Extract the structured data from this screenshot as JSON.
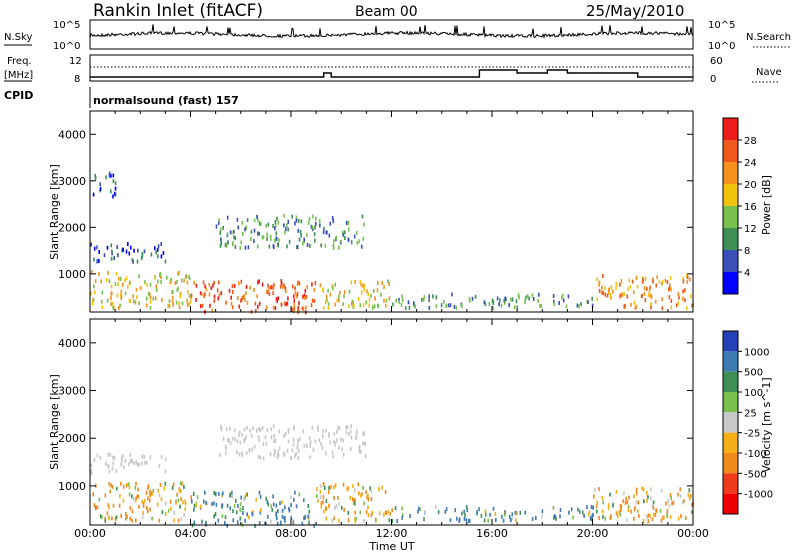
{
  "header": {
    "station": "Rankin Inlet (fitACF)",
    "beam": "Beam 00",
    "date": "25/May/2010"
  },
  "top_panel": {
    "left_label": "N.Sky",
    "left_ticks": [
      "10^5",
      "10^0"
    ],
    "right_label": "N.Search",
    "right_ticks": [
      "10^5",
      "10^0"
    ]
  },
  "freq_panel": {
    "left_label_1": "Freq.",
    "left_label_2": "[MHz]",
    "left_ticks": [
      "12",
      "8"
    ],
    "right_label": "Nave",
    "right_ticks": [
      "60",
      "0"
    ]
  },
  "cpid_panel": {
    "label": "CPID",
    "text": "normalsound (fast) 157"
  },
  "x_axis": {
    "ticks": [
      "00:00",
      "04:00",
      "08:00",
      "12:00",
      "16:00",
      "20:00",
      "00:00"
    ],
    "label": "Time UT"
  },
  "power_panel": {
    "ylabel": "Slant Range [km]",
    "yticks": [
      "1000",
      "2000",
      "3000",
      "4000"
    ],
    "colorbar_label": "Power [dB]",
    "colorbar_ticks": [
      "4",
      "8",
      "12",
      "16",
      "20",
      "24",
      "28"
    ],
    "colors": [
      "#0000ff",
      "#3a4fb8",
      "#3f8f55",
      "#79c250",
      "#f2c40e",
      "#f5921e",
      "#ef5a1c",
      "#ee1c1c"
    ]
  },
  "velocity_panel": {
    "ylabel": "Slant Range [km]",
    "yticks": [
      "1000",
      "2000",
      "3000",
      "4000"
    ],
    "colorbar_label": "Velocity [m s^-1]",
    "colorbar_ticks": [
      "1000",
      "500",
      "100",
      "25",
      "-25",
      "-100",
      "-500",
      "-1000"
    ],
    "colors": [
      "#2441b8",
      "#3f7bb3",
      "#3f8f55",
      "#79c250",
      "#c8c8c8",
      "#f5b017",
      "#f08a1d",
      "#ee3b1c",
      "#ee0000"
    ]
  },
  "chart_data": [
    {
      "type": "heatmap",
      "title": "Power",
      "x_range_hours": [
        0,
        24
      ],
      "y_range_km": [
        180,
        4500
      ],
      "xlabel": "Time UT",
      "ylabel": "Slant Range [km]",
      "colorbar": {
        "label": "Power [dB]",
        "range": [
          0,
          32
        ]
      },
      "echo_regions": [
        {
          "t": [
            0,
            4
          ],
          "range_km": [
            300,
            1100
          ],
          "power_db": 18
        },
        {
          "t": [
            4,
            9
          ],
          "range_km": [
            200,
            900
          ],
          "power_db": 26
        },
        {
          "t": [
            9,
            12
          ],
          "range_km": [
            300,
            900
          ],
          "power_db": 18
        },
        {
          "t": [
            12,
            20
          ],
          "range_km": [
            300,
            600
          ],
          "power_db": 10
        },
        {
          "t": [
            20,
            24
          ],
          "range_km": [
            300,
            1000
          ],
          "power_db": 22
        },
        {
          "t": [
            0,
            3
          ],
          "range_km": [
            1300,
            1700
          ],
          "power_db": 6
        },
        {
          "t": [
            5,
            11
          ],
          "range_km": [
            1600,
            2300
          ],
          "power_db": 10
        },
        {
          "t": [
            0,
            1
          ],
          "range_km": [
            2700,
            3200
          ],
          "power_db": 6
        }
      ]
    },
    {
      "type": "heatmap",
      "title": "Velocity",
      "x_range_hours": [
        0,
        24
      ],
      "y_range_km": [
        180,
        4500
      ],
      "xlabel": "Time UT",
      "ylabel": "Slant Range [km]",
      "colorbar": {
        "label": "Velocity [m s^-1]",
        "range": [
          -1000,
          1000
        ]
      },
      "echo_regions": [
        {
          "t": [
            0,
            4
          ],
          "range_km": [
            300,
            1100
          ],
          "velocity": -100
        },
        {
          "t": [
            4,
            9
          ],
          "range_km": [
            200,
            900
          ],
          "velocity": 100
        },
        {
          "t": [
            9,
            12
          ],
          "range_km": [
            300,
            1100
          ],
          "velocity": -100
        },
        {
          "t": [
            12,
            20
          ],
          "range_km": [
            300,
            600
          ],
          "velocity": 100
        },
        {
          "t": [
            20,
            24
          ],
          "range_km": [
            300,
            1000
          ],
          "velocity": -100
        },
        {
          "t": [
            0,
            3
          ],
          "range_km": [
            1300,
            1700
          ],
          "velocity": 0
        },
        {
          "t": [
            5,
            11
          ],
          "range_km": [
            1600,
            2300
          ],
          "velocity": 0
        }
      ]
    }
  ]
}
